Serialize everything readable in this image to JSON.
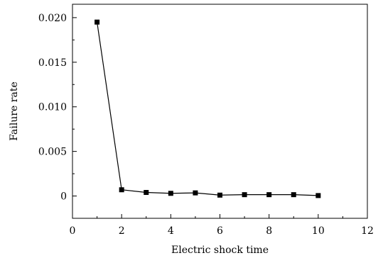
{
  "chart_data": {
    "type": "line",
    "xlabel": "Electric shock time",
    "ylabel": "Failure rate",
    "xlim": [
      0,
      12
    ],
    "ylim": [
      -0.0025,
      0.0215
    ],
    "xticks": [
      0,
      2,
      4,
      6,
      8,
      10,
      12
    ],
    "xtick_labels": [
      "0",
      "2",
      "4",
      "6",
      "8",
      "10",
      "12"
    ],
    "yticks": [
      0,
      0.005,
      0.01,
      0.015,
      0.02
    ],
    "ytick_labels": [
      "0",
      "0.005",
      "0.010",
      "0.015",
      "0.020"
    ],
    "grid": false,
    "legend": "none",
    "marker": "square",
    "series": [
      {
        "x": [
          1,
          2,
          3,
          4,
          5,
          6,
          7,
          8,
          9,
          10
        ],
        "y": [
          0.0195,
          0.0007,
          0.0004,
          0.0003,
          0.00035,
          0.0001,
          0.00015,
          0.00015,
          0.00015,
          5e-05
        ],
        "color": "#000000"
      }
    ]
  }
}
